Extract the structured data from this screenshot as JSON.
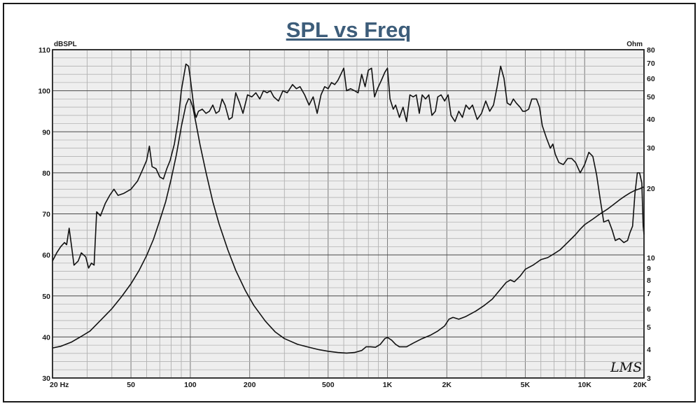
{
  "chart_data": {
    "type": "line",
    "title": "SPL vs Freq",
    "left_axis_unit": "dBSPL",
    "right_axis_unit": "Ohm",
    "brand": "LMS",
    "x_scale": "log",
    "xlim": [
      20,
      20000
    ],
    "ylim_left": [
      30,
      110
    ],
    "ylim_right": [
      3,
      80
    ],
    "y_scale_right": "log",
    "grid": true,
    "x_ticks": [
      {
        "value": 20,
        "label": "20  Hz"
      },
      {
        "value": 50,
        "label": "50"
      },
      {
        "value": 100,
        "label": "100"
      },
      {
        "value": 200,
        "label": "200"
      },
      {
        "value": 500,
        "label": "500"
      },
      {
        "value": 1000,
        "label": "1K"
      },
      {
        "value": 2000,
        "label": "2K"
      },
      {
        "value": 5000,
        "label": "5K"
      },
      {
        "value": 10000,
        "label": "10K"
      },
      {
        "value": 20000,
        "label": "20K"
      }
    ],
    "y_ticks_left": [
      30,
      40,
      50,
      60,
      70,
      80,
      90,
      100,
      110
    ],
    "y_ticks_right": [
      3,
      4,
      5,
      6,
      7,
      8,
      9,
      10,
      20,
      30,
      40,
      50,
      60,
      70,
      80
    ],
    "series": [
      {
        "axis": "left",
        "unit": "dBSPL",
        "points": [
          [
            20,
            58.5
          ],
          [
            21,
            60.5
          ],
          [
            22,
            62
          ],
          [
            23,
            63
          ],
          [
            23.6,
            62.5
          ],
          [
            24.3,
            66.5
          ],
          [
            25,
            62
          ],
          [
            25.7,
            57.5
          ],
          [
            27,
            58.5
          ],
          [
            28,
            60.5
          ],
          [
            29.5,
            59.5
          ],
          [
            30.5,
            56.8
          ],
          [
            31.5,
            58
          ],
          [
            32.5,
            57.5
          ],
          [
            33.5,
            70.5
          ],
          [
            35,
            69.5
          ],
          [
            37,
            72.5
          ],
          [
            39,
            74.5
          ],
          [
            41,
            76
          ],
          [
            43,
            74.5
          ],
          [
            46,
            75
          ],
          [
            50,
            76
          ],
          [
            54,
            78
          ],
          [
            57,
            80.5
          ],
          [
            60,
            83
          ],
          [
            62,
            86.5
          ],
          [
            64,
            81.5
          ],
          [
            67,
            81
          ],
          [
            70,
            79
          ],
          [
            73,
            78.5
          ],
          [
            76,
            81
          ],
          [
            79,
            83
          ],
          [
            83,
            87
          ],
          [
            87,
            93
          ],
          [
            90,
            100
          ],
          [
            93,
            104
          ],
          [
            95,
            106.5
          ],
          [
            98,
            106
          ],
          [
            100,
            103
          ],
          [
            103,
            98
          ],
          [
            105,
            95
          ],
          [
            107,
            93.5
          ],
          [
            110,
            95
          ],
          [
            115,
            95.5
          ],
          [
            120,
            94.5
          ],
          [
            125,
            95
          ],
          [
            130,
            96.5
          ],
          [
            135,
            94.5
          ],
          [
            140,
            95
          ],
          [
            145,
            98
          ],
          [
            150,
            96.5
          ],
          [
            157,
            93
          ],
          [
            163,
            93.5
          ],
          [
            170,
            99.5
          ],
          [
            178,
            97
          ],
          [
            185,
            94.5
          ],
          [
            195,
            99
          ],
          [
            205,
            98.5
          ],
          [
            215,
            99.5
          ],
          [
            225,
            98
          ],
          [
            235,
            100
          ],
          [
            245,
            99.5
          ],
          [
            255,
            100
          ],
          [
            265,
            98.5
          ],
          [
            280,
            97.5
          ],
          [
            295,
            100
          ],
          [
            310,
            99.5
          ],
          [
            330,
            101.5
          ],
          [
            345,
            100.5
          ],
          [
            360,
            101
          ],
          [
            380,
            99
          ],
          [
            400,
            96.5
          ],
          [
            420,
            98.5
          ],
          [
            440,
            94.5
          ],
          [
            460,
            99
          ],
          [
            480,
            101
          ],
          [
            500,
            100.5
          ],
          [
            520,
            102
          ],
          [
            540,
            101.5
          ],
          [
            560,
            102.5
          ],
          [
            580,
            104
          ],
          [
            600,
            105.5
          ],
          [
            620,
            100
          ],
          [
            650,
            100.5
          ],
          [
            680,
            100
          ],
          [
            710,
            99.5
          ],
          [
            740,
            104
          ],
          [
            770,
            101
          ],
          [
            800,
            105
          ],
          [
            830,
            105.5
          ],
          [
            860,
            98.5
          ],
          [
            890,
            100.5
          ],
          [
            930,
            102.5
          ],
          [
            970,
            104.5
          ],
          [
            1000,
            105.5
          ],
          [
            1030,
            98
          ],
          [
            1070,
            95.5
          ],
          [
            1100,
            96.5
          ],
          [
            1150,
            93.5
          ],
          [
            1200,
            96
          ],
          [
            1250,
            92.5
          ],
          [
            1300,
            99
          ],
          [
            1350,
            98.5
          ],
          [
            1400,
            99
          ],
          [
            1450,
            94.5
          ],
          [
            1500,
            99
          ],
          [
            1560,
            98
          ],
          [
            1620,
            99
          ],
          [
            1680,
            94
          ],
          [
            1750,
            95
          ],
          [
            1800,
            98.5
          ],
          [
            1870,
            99
          ],
          [
            1950,
            97.5
          ],
          [
            2030,
            99
          ],
          [
            2100,
            94
          ],
          [
            2200,
            92.5
          ],
          [
            2300,
            95
          ],
          [
            2400,
            93.5
          ],
          [
            2500,
            96.5
          ],
          [
            2600,
            95.5
          ],
          [
            2700,
            96.5
          ],
          [
            2850,
            93
          ],
          [
            3000,
            94.5
          ],
          [
            3150,
            97.5
          ],
          [
            3300,
            95
          ],
          [
            3450,
            96.5
          ],
          [
            3600,
            101
          ],
          [
            3750,
            106
          ],
          [
            3900,
            103
          ],
          [
            4050,
            97
          ],
          [
            4200,
            96.5
          ],
          [
            4350,
            98
          ],
          [
            4500,
            97
          ],
          [
            4700,
            96
          ],
          [
            4850,
            95
          ],
          [
            5000,
            95
          ],
          [
            5200,
            95.5
          ],
          [
            5400,
            98
          ],
          [
            5700,
            98
          ],
          [
            5900,
            96
          ],
          [
            6100,
            91.5
          ],
          [
            6400,
            88.5
          ],
          [
            6700,
            86
          ],
          [
            6900,
            87
          ],
          [
            7100,
            84.5
          ],
          [
            7400,
            82.5
          ],
          [
            7800,
            82
          ],
          [
            8200,
            83.5
          ],
          [
            8600,
            83.5
          ],
          [
            9000,
            82.5
          ],
          [
            9500,
            80
          ],
          [
            10000,
            82
          ],
          [
            10500,
            85
          ],
          [
            11000,
            84
          ],
          [
            11500,
            79.5
          ],
          [
            12000,
            73.5
          ],
          [
            12500,
            68
          ],
          [
            13200,
            68.5
          ],
          [
            13800,
            66
          ],
          [
            14300,
            63.5
          ],
          [
            15000,
            64
          ],
          [
            15800,
            63
          ],
          [
            16500,
            63.5
          ],
          [
            17000,
            65.5
          ],
          [
            17500,
            67
          ],
          [
            18000,
            75
          ],
          [
            18500,
            80
          ],
          [
            19000,
            80
          ],
          [
            19500,
            77.5
          ],
          [
            19800,
            67
          ],
          [
            20000,
            65
          ]
        ]
      },
      {
        "axis": "right",
        "unit": "Ohm",
        "points": [
          [
            20,
            4.05
          ],
          [
            22,
            4.12
          ],
          [
            25,
            4.3
          ],
          [
            28,
            4.55
          ],
          [
            31,
            4.8
          ],
          [
            34,
            5.2
          ],
          [
            37,
            5.6
          ],
          [
            40,
            6.0
          ],
          [
            45,
            6.8
          ],
          [
            50,
            7.7
          ],
          [
            55,
            8.8
          ],
          [
            60,
            10.2
          ],
          [
            65,
            12.0
          ],
          [
            70,
            14.5
          ],
          [
            75,
            17.5
          ],
          [
            80,
            22.0
          ],
          [
            85,
            28.0
          ],
          [
            90,
            37.0
          ],
          [
            95,
            46.0
          ],
          [
            98,
            49.0
          ],
          [
            100,
            48.5
          ],
          [
            103,
            45.0
          ],
          [
            107,
            38.0
          ],
          [
            112,
            31.0
          ],
          [
            120,
            23.5
          ],
          [
            130,
            17.5
          ],
          [
            140,
            14.0
          ],
          [
            155,
            10.8
          ],
          [
            170,
            8.8
          ],
          [
            190,
            7.2
          ],
          [
            210,
            6.2
          ],
          [
            240,
            5.3
          ],
          [
            270,
            4.75
          ],
          [
            300,
            4.45
          ],
          [
            350,
            4.2
          ],
          [
            400,
            4.08
          ],
          [
            450,
            3.98
          ],
          [
            500,
            3.92
          ],
          [
            560,
            3.87
          ],
          [
            620,
            3.85
          ],
          [
            680,
            3.87
          ],
          [
            740,
            3.95
          ],
          [
            780,
            4.1
          ],
          [
            820,
            4.1
          ],
          [
            870,
            4.08
          ],
          [
            920,
            4.2
          ],
          [
            970,
            4.45
          ],
          [
            1000,
            4.5
          ],
          [
            1050,
            4.38
          ],
          [
            1100,
            4.2
          ],
          [
            1150,
            4.1
          ],
          [
            1250,
            4.1
          ],
          [
            1350,
            4.25
          ],
          [
            1500,
            4.45
          ],
          [
            1650,
            4.6
          ],
          [
            1800,
            4.8
          ],
          [
            1950,
            5.05
          ],
          [
            2050,
            5.4
          ],
          [
            2150,
            5.5
          ],
          [
            2300,
            5.4
          ],
          [
            2500,
            5.55
          ],
          [
            2800,
            5.85
          ],
          [
            3100,
            6.2
          ],
          [
            3400,
            6.6
          ],
          [
            3700,
            7.2
          ],
          [
            4000,
            7.8
          ],
          [
            4200,
            8.0
          ],
          [
            4400,
            7.85
          ],
          [
            4700,
            8.3
          ],
          [
            5000,
            8.9
          ],
          [
            5500,
            9.3
          ],
          [
            6000,
            9.8
          ],
          [
            6500,
            10.0
          ],
          [
            7000,
            10.4
          ],
          [
            7500,
            10.8
          ],
          [
            8000,
            11.4
          ],
          [
            8500,
            12.0
          ],
          [
            9000,
            12.6
          ],
          [
            9500,
            13.3
          ],
          [
            10000,
            13.9
          ],
          [
            11000,
            14.7
          ],
          [
            12000,
            15.5
          ],
          [
            13000,
            16.2
          ],
          [
            14000,
            17.0
          ],
          [
            15000,
            17.8
          ],
          [
            16000,
            18.5
          ],
          [
            17000,
            19.1
          ],
          [
            18000,
            19.6
          ],
          [
            19000,
            19.9
          ],
          [
            20000,
            20.3
          ]
        ]
      }
    ]
  }
}
